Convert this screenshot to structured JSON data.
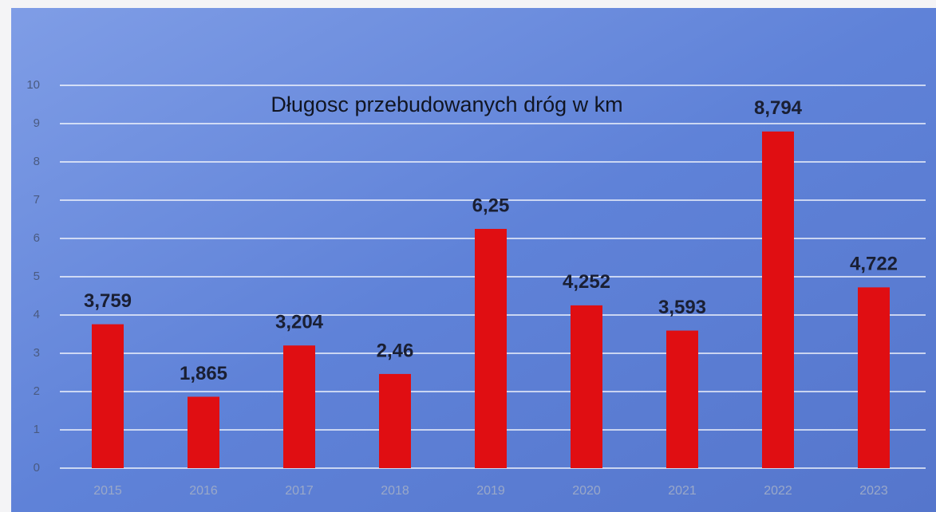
{
  "chart_data": {
    "type": "bar",
    "title": "Długosc przebudowanych dróg w km",
    "categories": [
      "2015",
      "2016",
      "2017",
      "2018",
      "2019",
      "2020",
      "2021",
      "2022",
      "2023"
    ],
    "values": [
      3.759,
      1.865,
      3.204,
      2.46,
      6.25,
      4.252,
      3.593,
      8.794,
      4.722
    ],
    "value_labels": [
      "3,759",
      "1,865",
      "3,204",
      "2,46",
      "6,25",
      "4,252",
      "3,593",
      "8,794",
      "4,722"
    ],
    "color": "#e00e12",
    "ylim": [
      0,
      10
    ],
    "yticks": [
      0,
      1,
      2,
      3,
      4,
      5,
      6,
      7,
      8,
      9,
      10
    ],
    "grid": true
  }
}
